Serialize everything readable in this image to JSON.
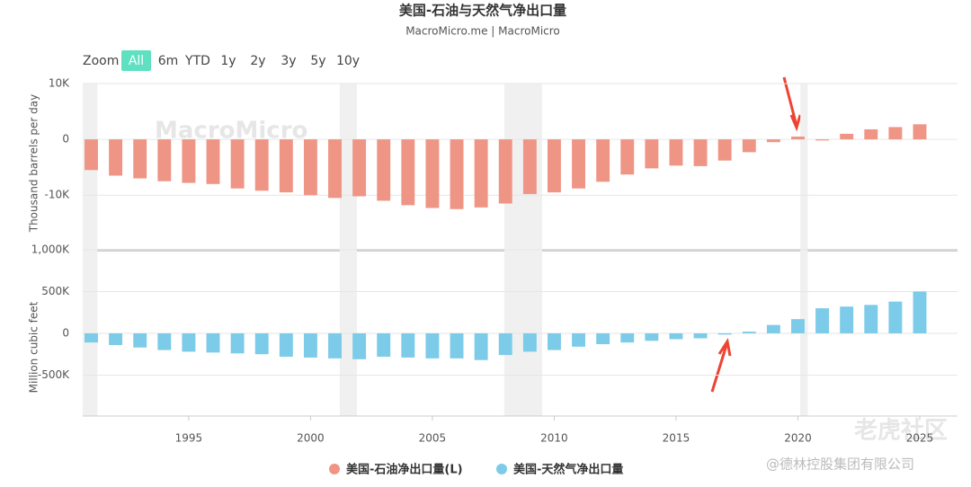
{
  "header": {
    "title": "美国-石油与天然气净出口量",
    "subtitle": "MacroMicro.me | MacroMicro"
  },
  "toolbar": {
    "label": "Zoom",
    "buttons": [
      "All",
      "6m",
      "YTD",
      "1y",
      "2y",
      "3y",
      "5y",
      "10y"
    ],
    "active": 0
  },
  "watermarks": [
    "MacroMicro",
    "老虎社区",
    "@德林控股集团有限公司"
  ],
  "chart_data": [
    {
      "type": "bar",
      "ylabel": "Thousand barrels per day",
      "x": [
        1991,
        1992,
        1993,
        1994,
        1995,
        1996,
        1997,
        1998,
        1999,
        2000,
        2001,
        2002,
        2003,
        2004,
        2005,
        2006,
        2007,
        2008,
        2009,
        2010,
        2011,
        2012,
        2013,
        2014,
        2015,
        2016,
        2017,
        2018,
        2019,
        2020,
        2021,
        2022,
        2023,
        2024,
        2025
      ],
      "xlim": [
        1990.65,
        2026.55
      ],
      "ylim": [
        -18500,
        10000
      ],
      "yticks": [
        {
          "value": 10000,
          "label": "10K"
        },
        0,
        {
          "value": -10000,
          "label": "-10K"
        }
      ],
      "grid": true,
      "recessions": [
        [
          1990.65,
          1991.25
        ],
        [
          2001.2,
          2001.9
        ],
        [
          2007.95,
          2009.5
        ],
        [
          2020.1,
          2020.4
        ]
      ],
      "series": [
        {
          "name": "美国-石油净出口量(L)",
          "color": "#ef9585",
          "values": [
            -5500,
            -6500,
            -7000,
            -7500,
            -7800,
            -8000,
            -8800,
            -9200,
            -9500,
            -10000,
            -10500,
            -10200,
            -11000,
            -11800,
            -12300,
            -12500,
            -12200,
            -11500,
            -9800,
            -9500,
            -8800,
            -7600,
            -6300,
            -5200,
            -4700,
            -4800,
            -3800,
            -2300,
            -500,
            500,
            -200,
            1000,
            1800,
            2200,
            2700
          ]
        }
      ]
    },
    {
      "type": "bar",
      "ylabel": "Million cubic feet",
      "x": [
        1991,
        1992,
        1993,
        1994,
        1995,
        1996,
        1997,
        1998,
        1999,
        2000,
        2001,
        2002,
        2003,
        2004,
        2005,
        2006,
        2007,
        2008,
        2009,
        2010,
        2011,
        2012,
        2013,
        2014,
        2015,
        2016,
        2017,
        2018,
        2019,
        2020,
        2021,
        2022,
        2023,
        2024,
        2025
      ],
      "xlim": [
        1990.65,
        2026.55
      ],
      "xticks": [
        1995,
        2000,
        2005,
        2010,
        2015,
        2020,
        2025
      ],
      "ylim": [
        -990000,
        1000000
      ],
      "yticks": [
        {
          "value": 1000000,
          "label": "1,000K"
        },
        {
          "value": 500000,
          "label": "500K"
        },
        0,
        {
          "value": -500000,
          "label": "-500K"
        }
      ],
      "grid": true,
      "recessions": [
        [
          1990.65,
          1991.25
        ],
        [
          2001.2,
          2001.9
        ],
        [
          2007.95,
          2009.5
        ],
        [
          2020.1,
          2020.4
        ]
      ],
      "series": [
        {
          "name": "美国-天然气净出口量",
          "color": "#7ccbe8",
          "values": [
            -110000,
            -140000,
            -170000,
            -200000,
            -220000,
            -230000,
            -240000,
            -250000,
            -280000,
            -290000,
            -300000,
            -310000,
            -280000,
            -290000,
            -300000,
            -300000,
            -320000,
            -260000,
            -220000,
            -200000,
            -160000,
            -130000,
            -110000,
            -90000,
            -70000,
            -60000,
            -15000,
            20000,
            100000,
            170000,
            300000,
            320000,
            340000,
            380000,
            500000
          ]
        }
      ]
    }
  ]
}
